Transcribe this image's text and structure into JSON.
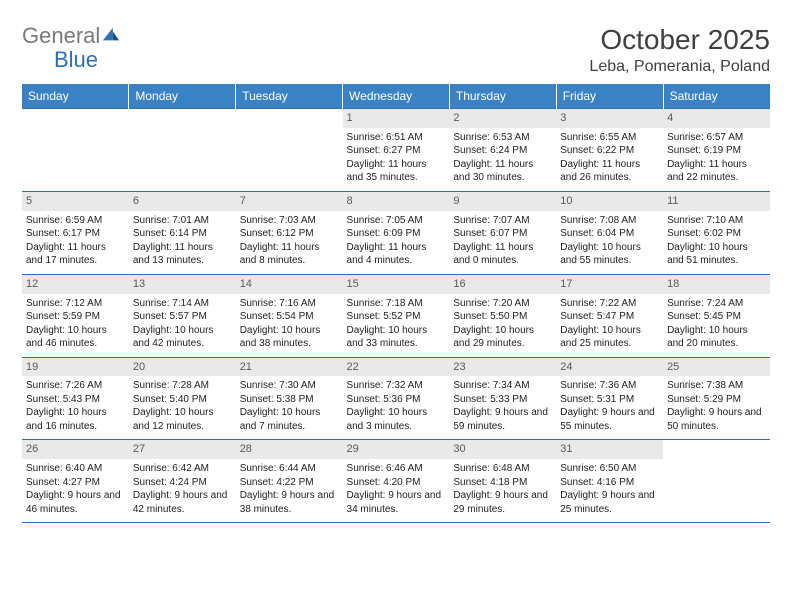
{
  "logo": {
    "word1": "General",
    "word2": "Blue"
  },
  "title": "October 2025",
  "location": "Leba, Pomerania, Poland",
  "headers": [
    "Sunday",
    "Monday",
    "Tuesday",
    "Wednesday",
    "Thursday",
    "Friday",
    "Saturday"
  ],
  "header_bg": "#3a82c4",
  "header_fg": "#ffffff",
  "rule_color": "#2f6fb3",
  "daynum_bg": "#e9e9e9",
  "weeks": [
    [
      {
        "empty": true
      },
      {
        "empty": true
      },
      {
        "empty": true
      },
      {
        "day": "1",
        "sunrise": "6:51 AM",
        "sunset": "6:27 PM",
        "daylight": "11 hours and 35 minutes."
      },
      {
        "day": "2",
        "sunrise": "6:53 AM",
        "sunset": "6:24 PM",
        "daylight": "11 hours and 30 minutes."
      },
      {
        "day": "3",
        "sunrise": "6:55 AM",
        "sunset": "6:22 PM",
        "daylight": "11 hours and 26 minutes."
      },
      {
        "day": "4",
        "sunrise": "6:57 AM",
        "sunset": "6:19 PM",
        "daylight": "11 hours and 22 minutes."
      }
    ],
    [
      {
        "day": "5",
        "sunrise": "6:59 AM",
        "sunset": "6:17 PM",
        "daylight": "11 hours and 17 minutes."
      },
      {
        "day": "6",
        "sunrise": "7:01 AM",
        "sunset": "6:14 PM",
        "daylight": "11 hours and 13 minutes."
      },
      {
        "day": "7",
        "sunrise": "7:03 AM",
        "sunset": "6:12 PM",
        "daylight": "11 hours and 8 minutes."
      },
      {
        "day": "8",
        "sunrise": "7:05 AM",
        "sunset": "6:09 PM",
        "daylight": "11 hours and 4 minutes."
      },
      {
        "day": "9",
        "sunrise": "7:07 AM",
        "sunset": "6:07 PM",
        "daylight": "11 hours and 0 minutes."
      },
      {
        "day": "10",
        "sunrise": "7:08 AM",
        "sunset": "6:04 PM",
        "daylight": "10 hours and 55 minutes."
      },
      {
        "day": "11",
        "sunrise": "7:10 AM",
        "sunset": "6:02 PM",
        "daylight": "10 hours and 51 minutes."
      }
    ],
    [
      {
        "day": "12",
        "sunrise": "7:12 AM",
        "sunset": "5:59 PM",
        "daylight": "10 hours and 46 minutes."
      },
      {
        "day": "13",
        "sunrise": "7:14 AM",
        "sunset": "5:57 PM",
        "daylight": "10 hours and 42 minutes."
      },
      {
        "day": "14",
        "sunrise": "7:16 AM",
        "sunset": "5:54 PM",
        "daylight": "10 hours and 38 minutes."
      },
      {
        "day": "15",
        "sunrise": "7:18 AM",
        "sunset": "5:52 PM",
        "daylight": "10 hours and 33 minutes."
      },
      {
        "day": "16",
        "sunrise": "7:20 AM",
        "sunset": "5:50 PM",
        "daylight": "10 hours and 29 minutes."
      },
      {
        "day": "17",
        "sunrise": "7:22 AM",
        "sunset": "5:47 PM",
        "daylight": "10 hours and 25 minutes."
      },
      {
        "day": "18",
        "sunrise": "7:24 AM",
        "sunset": "5:45 PM",
        "daylight": "10 hours and 20 minutes."
      }
    ],
    [
      {
        "day": "19",
        "sunrise": "7:26 AM",
        "sunset": "5:43 PM",
        "daylight": "10 hours and 16 minutes."
      },
      {
        "day": "20",
        "sunrise": "7:28 AM",
        "sunset": "5:40 PM",
        "daylight": "10 hours and 12 minutes."
      },
      {
        "day": "21",
        "sunrise": "7:30 AM",
        "sunset": "5:38 PM",
        "daylight": "10 hours and 7 minutes."
      },
      {
        "day": "22",
        "sunrise": "7:32 AM",
        "sunset": "5:36 PM",
        "daylight": "10 hours and 3 minutes."
      },
      {
        "day": "23",
        "sunrise": "7:34 AM",
        "sunset": "5:33 PM",
        "daylight": "9 hours and 59 minutes."
      },
      {
        "day": "24",
        "sunrise": "7:36 AM",
        "sunset": "5:31 PM",
        "daylight": "9 hours and 55 minutes."
      },
      {
        "day": "25",
        "sunrise": "7:38 AM",
        "sunset": "5:29 PM",
        "daylight": "9 hours and 50 minutes."
      }
    ],
    [
      {
        "day": "26",
        "sunrise": "6:40 AM",
        "sunset": "4:27 PM",
        "daylight": "9 hours and 46 minutes."
      },
      {
        "day": "27",
        "sunrise": "6:42 AM",
        "sunset": "4:24 PM",
        "daylight": "9 hours and 42 minutes."
      },
      {
        "day": "28",
        "sunrise": "6:44 AM",
        "sunset": "4:22 PM",
        "daylight": "9 hours and 38 minutes."
      },
      {
        "day": "29",
        "sunrise": "6:46 AM",
        "sunset": "4:20 PM",
        "daylight": "9 hours and 34 minutes."
      },
      {
        "day": "30",
        "sunrise": "6:48 AM",
        "sunset": "4:18 PM",
        "daylight": "9 hours and 29 minutes."
      },
      {
        "day": "31",
        "sunrise": "6:50 AM",
        "sunset": "4:16 PM",
        "daylight": "9 hours and 25 minutes."
      },
      {
        "empty": true
      }
    ]
  ],
  "labels": {
    "sunrise": "Sunrise: ",
    "sunset": "Sunset: ",
    "daylight": "Daylight: "
  }
}
